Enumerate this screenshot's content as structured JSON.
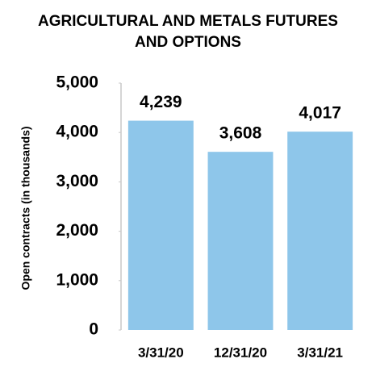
{
  "chart_data": {
    "type": "bar",
    "title": "AGRICULTURAL AND METALS FUTURES AND OPTIONS",
    "y_label": "Open contracts (in thousands)",
    "categories": [
      "3/31/20",
      "12/31/20",
      "3/31/21"
    ],
    "values": [
      4239,
      3608,
      4017
    ],
    "value_labels": [
      "4,239",
      "3,608",
      "4,017"
    ],
    "color": "#8ec6ea",
    "ylim": [
      0,
      5000
    ],
    "yticks": [
      0,
      {
        "value": 1000,
        "label": "1,000"
      },
      {
        "value": 2000,
        "label": "2,000"
      },
      {
        "value": 3000,
        "label": "3,000"
      },
      {
        "value": 4000,
        "label": "4,000"
      },
      {
        "value": 5000,
        "label": "5,000"
      }
    ],
    "grid": false
  }
}
